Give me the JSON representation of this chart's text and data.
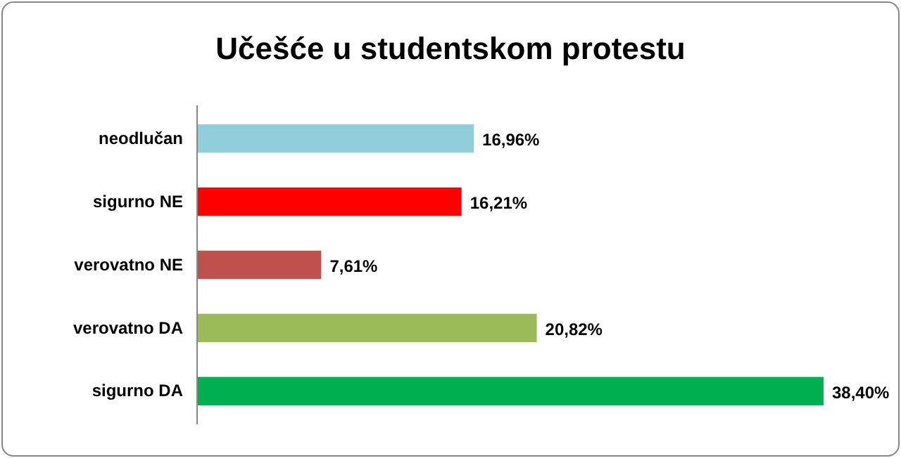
{
  "chart_data": {
    "type": "bar",
    "orientation": "horizontal",
    "title": "Učešće u studentskom protestu",
    "categories": [
      "neodlučan",
      "sigurno NE",
      "verovatno NE",
      "verovatno DA",
      "sigurno DA"
    ],
    "values": [
      16.96,
      16.21,
      7.61,
      20.82,
      38.4
    ],
    "colors": [
      "#92cddc",
      "#ff0000",
      "#c0504d",
      "#9bbb59",
      "#00b050"
    ],
    "value_labels": [
      "16,96%",
      "16,21%",
      "7,61%",
      "20,82%",
      "38,40%"
    ]
  }
}
